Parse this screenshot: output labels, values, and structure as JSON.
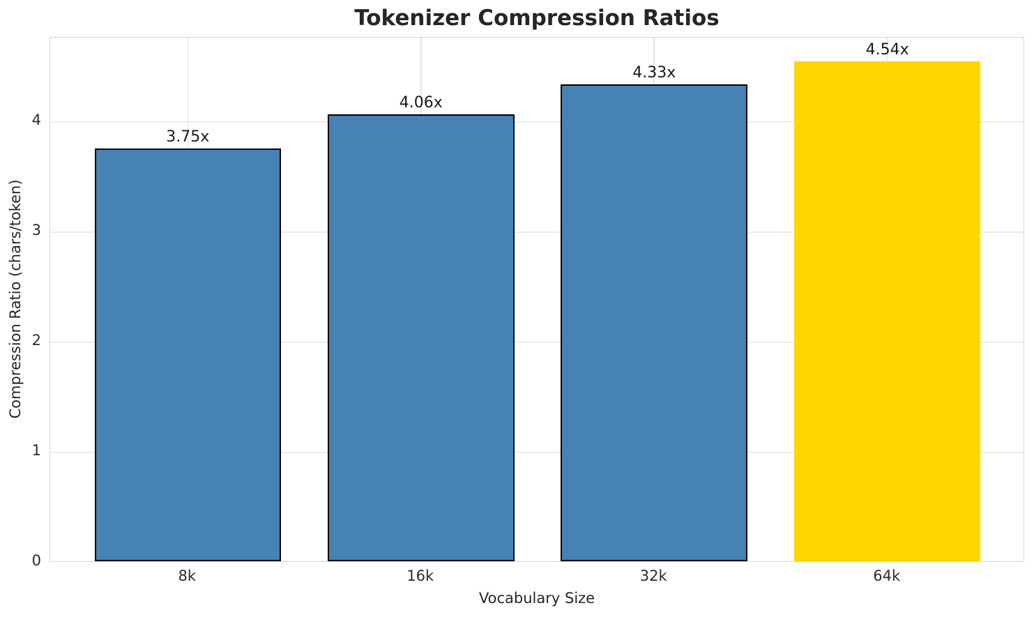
{
  "chart_data": {
    "type": "bar",
    "title": "Tokenizer Compression Ratios",
    "xlabel": "Vocabulary Size",
    "ylabel": "Compression Ratio (chars/token)",
    "categories": [
      "8k",
      "16k",
      "32k",
      "64k"
    ],
    "values": [
      3.75,
      4.06,
      4.33,
      4.54
    ],
    "value_labels": [
      "3.75x",
      "4.06x",
      "4.33x",
      "4.54x"
    ],
    "yticks": [
      0,
      1,
      2,
      3,
      4
    ],
    "ylim": [
      0,
      4.767
    ],
    "xlim": [
      -0.59,
      3.59
    ],
    "bar_width_units": 0.8,
    "grid": "on",
    "legend": "none",
    "bar_colors": [
      "#4682b4",
      "#4682b4",
      "#4682b4",
      "#ffd700"
    ],
    "bar_edge_colors": [
      "#000000",
      "#000000",
      "#000000",
      "none"
    ],
    "highlight_index": 3,
    "colors": {
      "background": "#ffffff",
      "grid_h": "#ebebeb",
      "grid_v": "#e3e3e3",
      "spine": "#d4d4d4",
      "text": "#262626",
      "bar_default": "#4682b4",
      "bar_highlight": "#ffd700"
    }
  }
}
